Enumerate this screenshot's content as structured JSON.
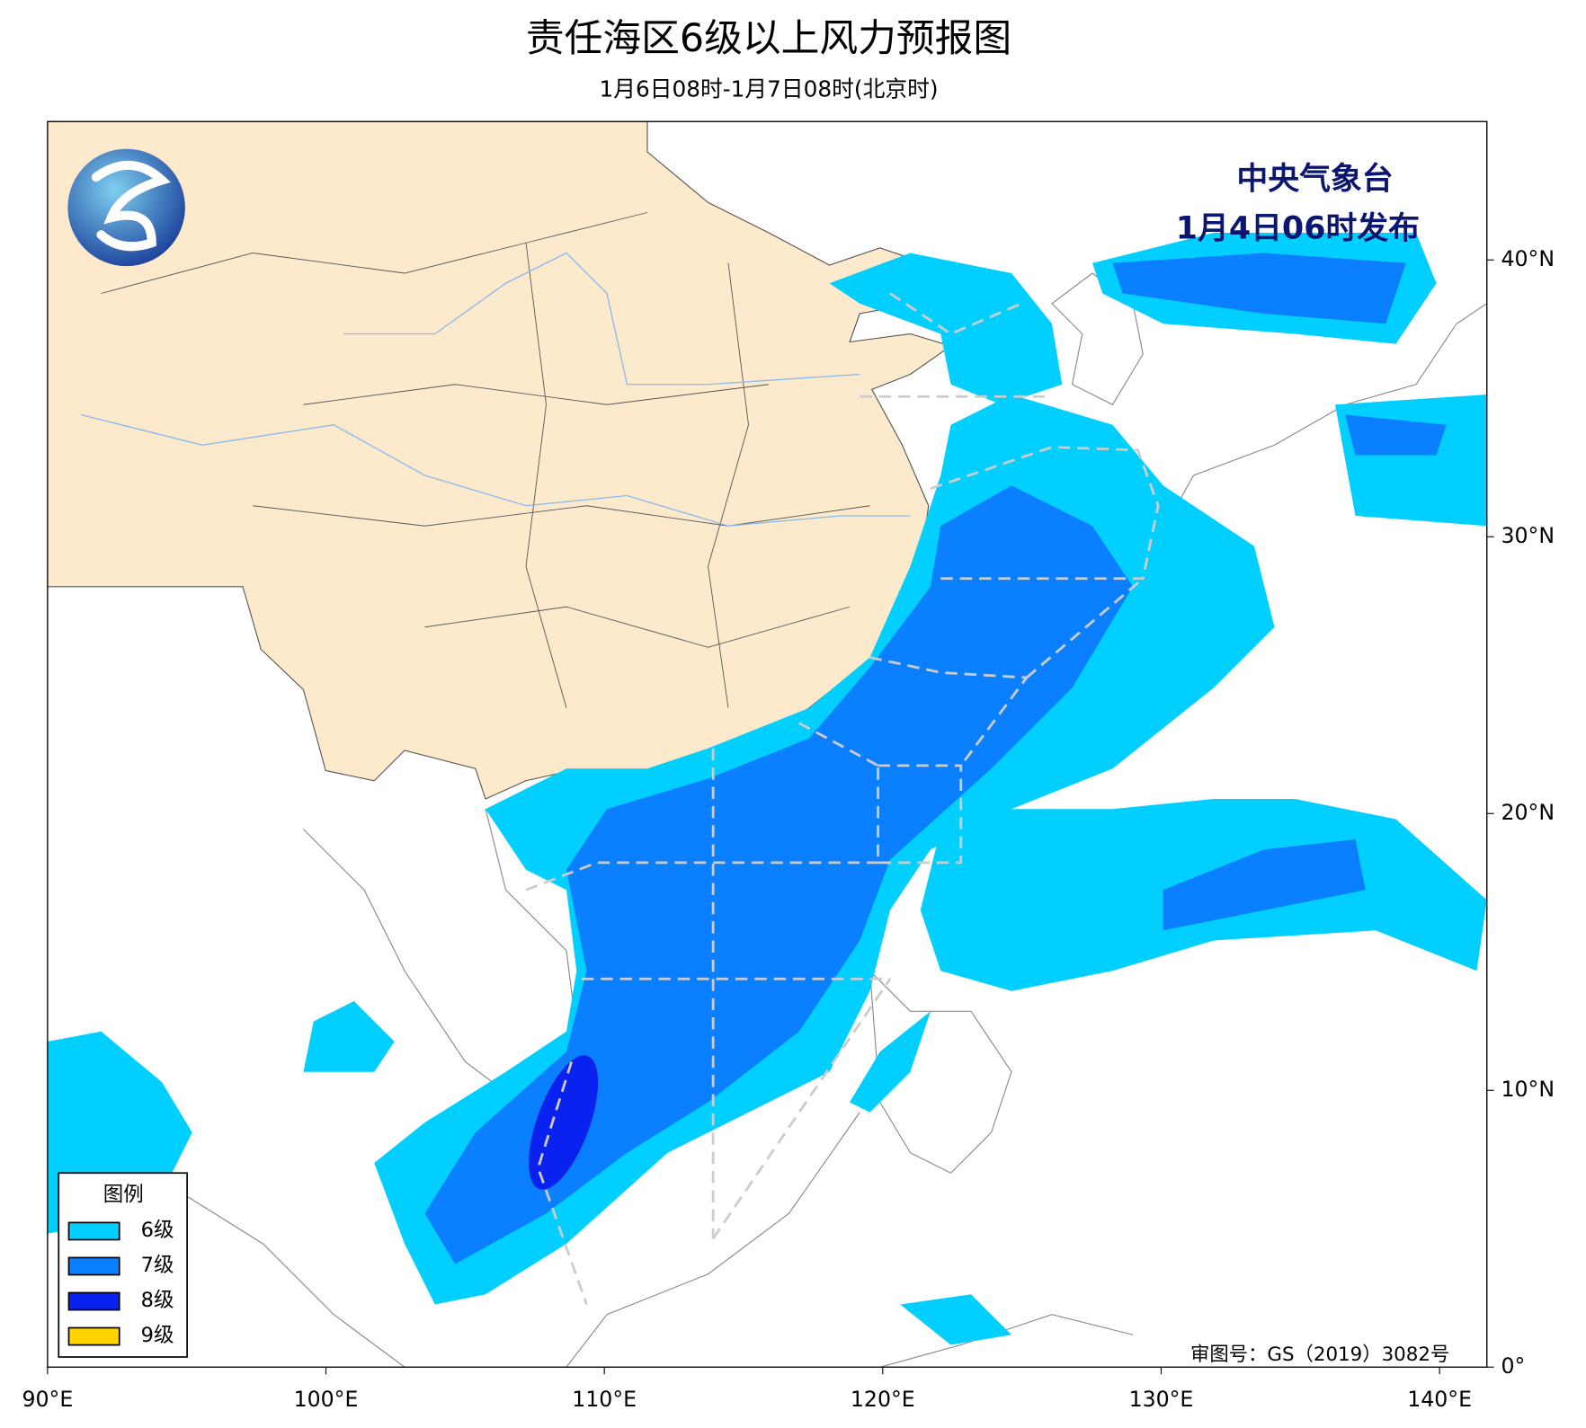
{
  "header": {
    "title": "责任海区6级以上风力预报图",
    "subtitle": "1月6日08时-1月7日08时(北京时)"
  },
  "issuer": [
    "中央气象台",
    "1月4日06时发布"
  ],
  "approval": "审图号：GS（2019）3082号",
  "map": {
    "xlim": [
      90,
      141.7
    ],
    "ylim": [
      0,
      45
    ],
    "xticks": [
      {
        "value": 90,
        "label": "90°E"
      },
      {
        "value": 100,
        "label": "100°E"
      },
      {
        "value": 110,
        "label": "110°E"
      },
      {
        "value": 120,
        "label": "120°E"
      },
      {
        "value": 130,
        "label": "130°E"
      },
      {
        "value": 140,
        "label": "140°E"
      }
    ],
    "yticks": [
      {
        "value": 0,
        "label": "0°"
      },
      {
        "value": 10,
        "label": "10°N"
      },
      {
        "value": 20,
        "label": "20°N"
      },
      {
        "value": 30,
        "label": "30°N"
      },
      {
        "value": 40,
        "label": "40°N"
      }
    ]
  },
  "legend": {
    "title": "图例",
    "items": [
      {
        "name": "6级",
        "color": "#00cfff"
      },
      {
        "name": "7级",
        "color": "#0a7fff"
      },
      {
        "name": "8级",
        "color": "#0a22f0"
      },
      {
        "name": "9级",
        "color": "#ffd400"
      }
    ]
  }
}
